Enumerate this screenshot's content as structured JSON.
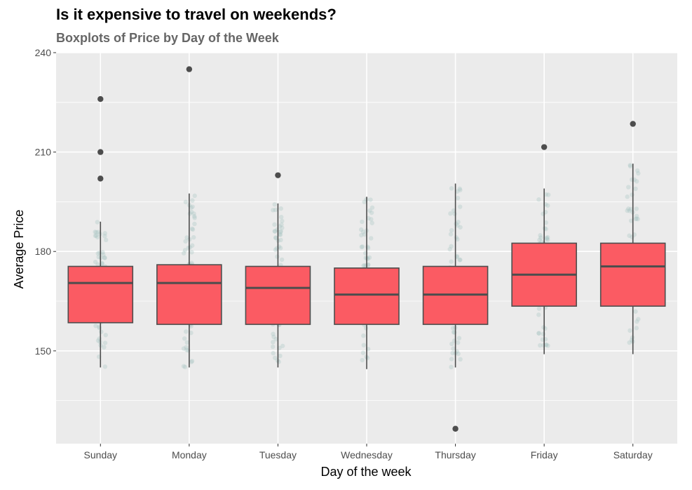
{
  "chart_data": {
    "type": "boxplot",
    "title": "Is it expensive to travel on weekends?",
    "subtitle": "Boxplots of Price by Day of the Week",
    "xlabel": "Day of the week",
    "ylabel": "Average Price",
    "ylim": [
      122,
      240
    ],
    "yticks": [
      150,
      180,
      210,
      240
    ],
    "grid": true,
    "legend": "none",
    "colors": {
      "panel": "#ebebeb",
      "grid": "#ffffff",
      "box_fill": "#fb5b63",
      "box_line": "#4d4d4d",
      "jitter": "#a9c6c4",
      "outlier": "#4d4d4d"
    },
    "categories": [
      "Sunday",
      "Monday",
      "Tuesday",
      "Wednesday",
      "Thursday",
      "Friday",
      "Saturday"
    ],
    "boxes": [
      {
        "category": "Sunday",
        "min": 145,
        "q1": 158.5,
        "median": 170.5,
        "q3": 175.5,
        "max": 189,
        "outliers": [
          226,
          210,
          202
        ]
      },
      {
        "category": "Monday",
        "min": 145,
        "q1": 158,
        "median": 170.5,
        "q3": 176,
        "max": 197.5,
        "outliers": [
          235
        ]
      },
      {
        "category": "Tuesday",
        "min": 145,
        "q1": 158,
        "median": 169,
        "q3": 175.5,
        "max": 194.5,
        "outliers": [
          203
        ]
      },
      {
        "category": "Wednesday",
        "min": 144.5,
        "q1": 158,
        "median": 167,
        "q3": 175,
        "max": 196.5,
        "outliers": []
      },
      {
        "category": "Thursday",
        "min": 145,
        "q1": 158,
        "median": 167,
        "q3": 175.5,
        "max": 200.5,
        "outliers": [
          126.5
        ]
      },
      {
        "category": "Friday",
        "min": 149,
        "q1": 163.5,
        "median": 173,
        "q3": 182.5,
        "max": 199,
        "outliers": [
          211.5
        ]
      },
      {
        "category": "Saturday",
        "min": 149,
        "q1": 163.5,
        "median": 175.5,
        "q3": 182.5,
        "max": 206.5,
        "outliers": [
          218.5
        ]
      }
    ]
  }
}
